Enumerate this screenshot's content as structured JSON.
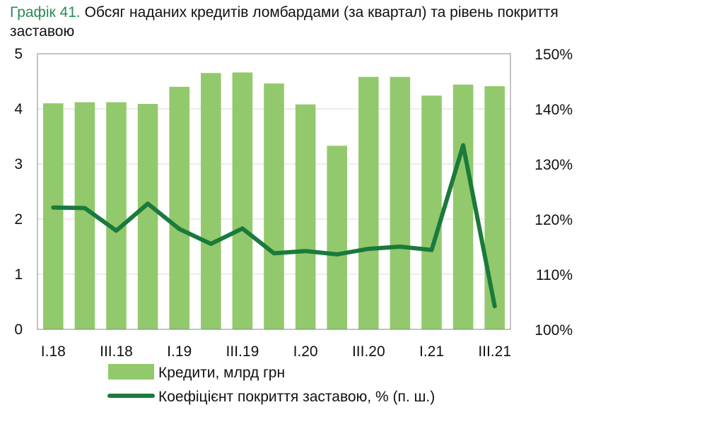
{
  "title_number": "Графік 41.",
  "title_text": "Обсяг наданих кредитів ломбардами (за квартал) та рівень покриття заставою",
  "chart_data": {
    "type": "bar",
    "categories": [
      "I.18",
      "II.18",
      "III.18",
      "IV.18",
      "I.19",
      "II.19",
      "III.19",
      "IV.19",
      "I.20",
      "II.20",
      "III.20",
      "IV.20",
      "I.21",
      "II.21",
      "III.21"
    ],
    "category_labels_shown": [
      "I.18",
      "III.18",
      "I.19",
      "III.19",
      "I.20",
      "III.20",
      "I.21",
      "III.21"
    ],
    "series": [
      {
        "name": "Кредити, млрд грн",
        "type": "bar",
        "axis": "left",
        "color": "#92c96c",
        "values": [
          4.1,
          4.12,
          4.12,
          4.09,
          4.4,
          4.65,
          4.66,
          4.46,
          4.08,
          3.33,
          4.58,
          4.58,
          4.24,
          4.44,
          4.41
        ]
      },
      {
        "name": "Коефіцієнт покриття заставою, % (п. ш.)",
        "type": "line",
        "axis": "right",
        "color": "#1a7a3c",
        "values": [
          122.1,
          122.0,
          117.9,
          122.8,
          118.2,
          115.5,
          118.3,
          113.8,
          114.2,
          113.6,
          114.6,
          115.0,
          114.4,
          133.4,
          104.2
        ]
      }
    ],
    "y_left": {
      "min": 0,
      "max": 5,
      "ticks": [
        "0",
        "1",
        "2",
        "3",
        "4",
        "5"
      ]
    },
    "y_right": {
      "min": 100,
      "max": 150,
      "ticks": [
        "100%",
        "110%",
        "120%",
        "130%",
        "140%",
        "150%"
      ]
    },
    "grid": true,
    "legend_position": "bottom"
  }
}
